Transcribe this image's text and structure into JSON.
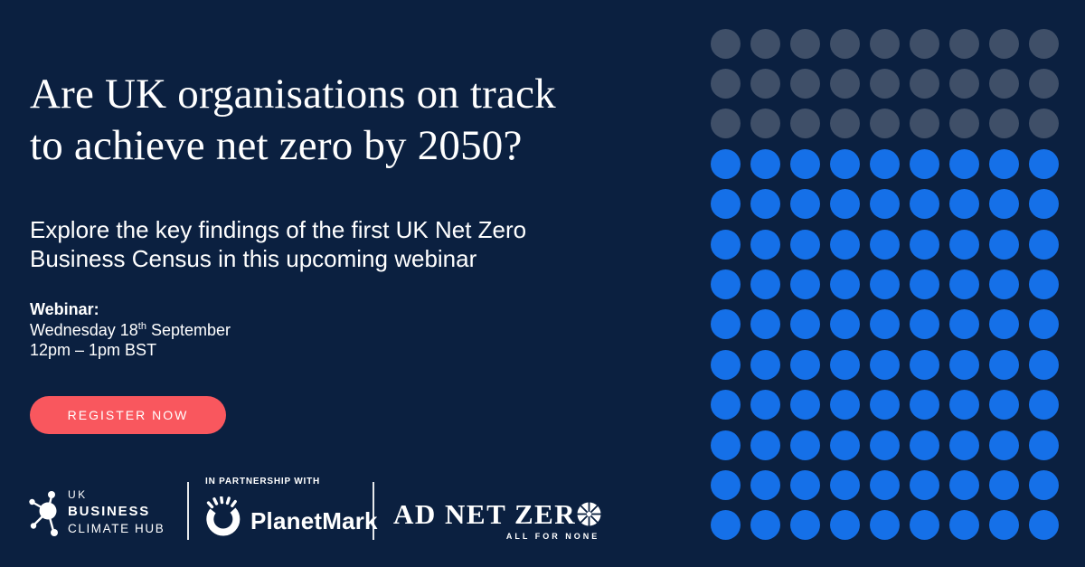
{
  "page": {
    "background": "#0B2040",
    "text_color": "#FFFFFF"
  },
  "headline": {
    "line1": "Are UK organisations on track",
    "line2": "to achieve net zero by 2050?"
  },
  "subheadline": {
    "line1": "Explore the key findings of the first UK Net Zero",
    "line2": "Business Census in this upcoming webinar"
  },
  "webinar": {
    "label": "Webinar:",
    "date_prefix": "Wednesday 18",
    "date_superscript": "th",
    "date_suffix": " September",
    "time": "12pm – 1pm BST"
  },
  "cta": {
    "label": "REGISTER NOW",
    "color": "#F9575E"
  },
  "footer": {
    "brand": {
      "line1": "UK",
      "line2": "BUSINESS",
      "line3": "CLIMATE HUB"
    },
    "partnership_label": "IN PARTNERSHIP WITH",
    "partner1_name": "PlanetMark",
    "partner2_name": "AD NET ZER",
    "partner2_tagline": "ALL FOR NONE"
  },
  "dot_grid": {
    "columns": 9,
    "rows": 13,
    "gray_rows": 3,
    "gray_color": "#3F4F68",
    "blue_color": "#1570E8"
  }
}
